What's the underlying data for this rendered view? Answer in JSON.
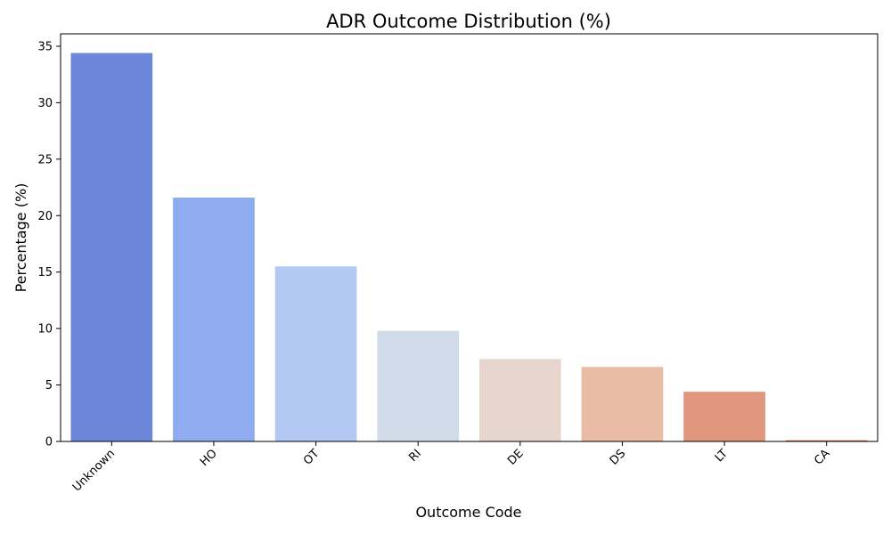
{
  "chart_data": {
    "type": "bar",
    "title": "ADR Outcome Distribution (%)",
    "xlabel": "Outcome Code",
    "ylabel": "Percentage (%)",
    "categories": [
      "Unknown",
      "HO",
      "OT",
      "RI",
      "DE",
      "DS",
      "LT",
      "CA"
    ],
    "values": [
      34.4,
      21.6,
      15.5,
      9.8,
      7.3,
      6.6,
      4.4,
      0.1
    ],
    "colors": [
      "#6c87d9",
      "#90acf0",
      "#b4c8f4",
      "#d2dbea",
      "#e6d6ce",
      "#ebbca5",
      "#e0977e",
      "#c8634e"
    ],
    "ylim": [
      0,
      36.1
    ],
    "yticks": [
      0,
      5,
      10,
      15,
      20,
      25,
      30,
      35
    ],
    "grid": false,
    "legend": "none"
  }
}
